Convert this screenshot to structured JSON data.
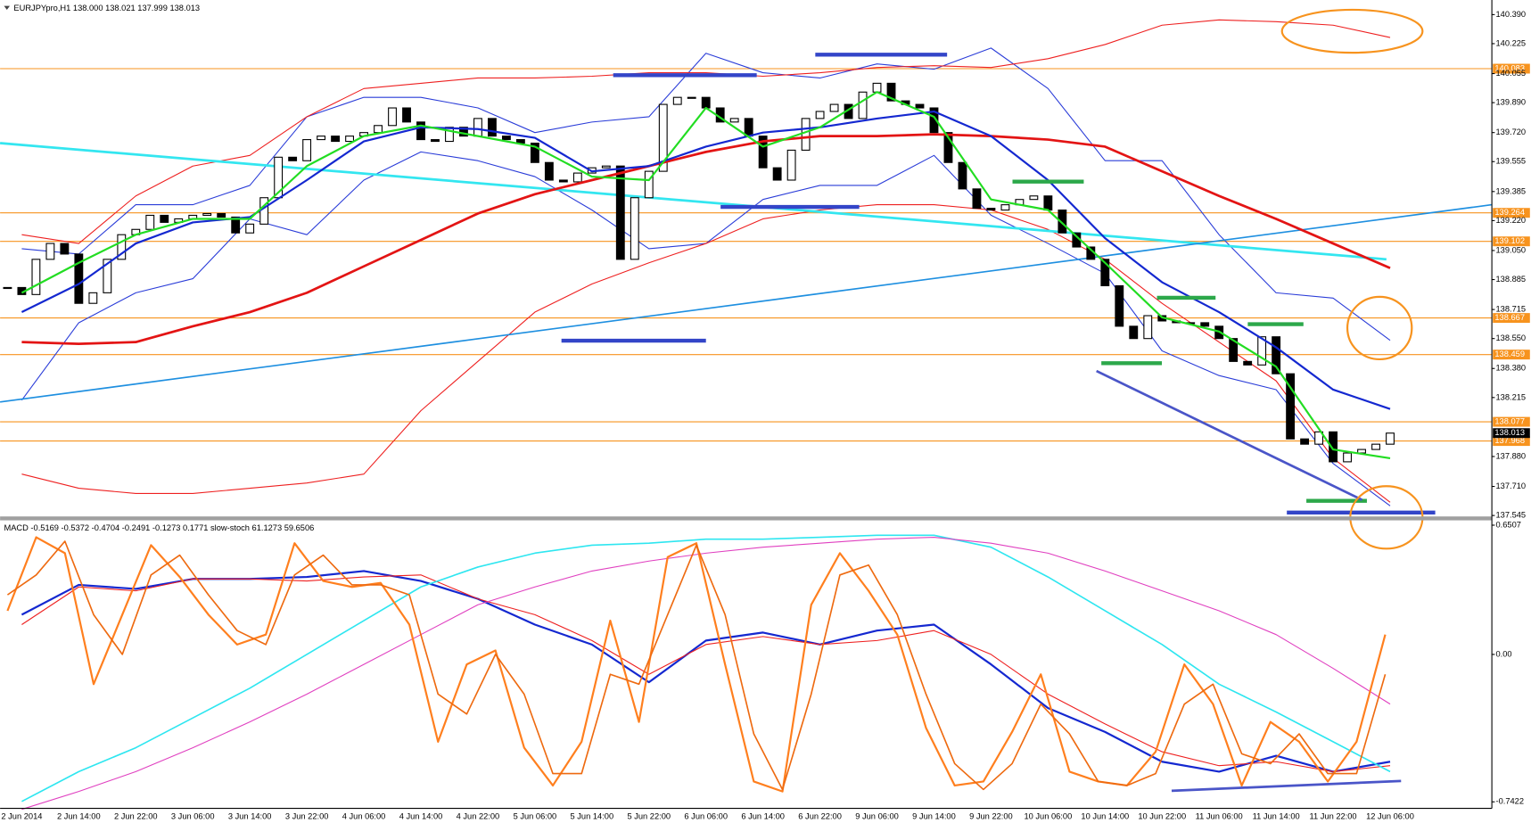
{
  "chart_data": [
    {
      "type": "candlestick",
      "title": "EURJPYpro,H1  138.000 138.021 137.999 138.013",
      "close": [
        138.84,
        138.8,
        139.0,
        139.09,
        139.03,
        138.75,
        138.81,
        139.0,
        139.14,
        139.17,
        139.25,
        139.21,
        139.23,
        139.25,
        139.26,
        139.24,
        139.15,
        139.2,
        139.35,
        139.58,
        139.56,
        139.68,
        139.7,
        139.67,
        139.7,
        139.72,
        139.76,
        139.86,
        139.78,
        139.68,
        139.67,
        139.75,
        139.7,
        139.8,
        139.7,
        139.68,
        139.66,
        139.55,
        139.45,
        139.44,
        139.49,
        139.52,
        139.53,
        139.0,
        139.35,
        139.5,
        139.88,
        139.92,
        139.92,
        139.86,
        139.78,
        139.8,
        139.7,
        139.52,
        139.45,
        139.62,
        139.8,
        139.84,
        139.88,
        139.8,
        139.95,
        140.0,
        139.9,
        139.88,
        139.86,
        139.72,
        139.55,
        139.4,
        139.29,
        139.28,
        139.31,
        139.34,
        139.36,
        139.28,
        139.15,
        139.07,
        139.0,
        138.85,
        138.62,
        138.55,
        138.68,
        138.65,
        138.64,
        138.64,
        138.62,
        138.55,
        138.42,
        138.4,
        138.56,
        138.35,
        137.98,
        137.95,
        138.02,
        137.85,
        137.9,
        137.92,
        137.95,
        138.013
      ],
      "up_color": "#ffffff",
      "down_color": "#000000",
      "ylim": [
        137.534,
        140.473
      ],
      "yticks": [
        {
          "value": 140.39,
          "label": "140.390"
        },
        140.225,
        140.055,
        {
          "value": 139.89,
          "label": "139.890"
        },
        {
          "value": 139.72,
          "label": "139.720"
        },
        139.555,
        139.385,
        {
          "value": 139.22,
          "label": "139.220"
        },
        {
          "value": 139.05,
          "label": "139.050"
        },
        138.885,
        138.715,
        {
          "value": 138.55,
          "label": "138.550"
        },
        {
          "value": 138.38,
          "label": "138.380"
        },
        138.215,
        {
          "value": 137.88,
          "label": "137.880"
        },
        {
          "value": 137.71,
          "label": "137.710"
        },
        137.545
      ],
      "levels": [
        140.083,
        139.264,
        139.102,
        138.667,
        138.459,
        138.077,
        137.968
      ],
      "level_color": "#f7931e",
      "series": [
        {
          "color": "#e31414",
          "values": [
            138.53,
            138.52,
            138.53,
            138.62,
            138.7,
            138.81,
            138.96,
            139.11,
            139.26,
            139.37,
            139.45,
            139.53,
            139.61,
            139.67,
            139.7,
            139.7,
            139.71,
            139.7,
            139.68,
            139.64,
            139.5,
            139.36,
            139.23,
            139.09,
            138.95
          ]
        },
        {
          "color": "#1428d0",
          "values": [
            138.7,
            138.86,
            139.09,
            139.21,
            139.24,
            139.45,
            139.67,
            139.75,
            139.74,
            139.69,
            139.5,
            139.53,
            139.64,
            139.72,
            139.75,
            139.8,
            139.84,
            139.7,
            139.45,
            139.12,
            138.87,
            138.7,
            138.5,
            138.26,
            138.15
          ]
        },
        {
          "color": "#22dd22",
          "values": [
            138.81,
            138.98,
            139.14,
            139.23,
            139.23,
            139.53,
            139.7,
            139.76,
            139.7,
            139.64,
            139.47,
            139.45,
            139.86,
            139.64,
            139.75,
            139.95,
            139.81,
            139.34,
            139.28,
            138.98,
            138.67,
            138.59,
            138.39,
            137.92,
            137.87
          ]
        },
        {
          "color": "#2a3cd8",
          "values": [
            139.06,
            139.03,
            139.31,
            139.31,
            139.42,
            139.81,
            139.92,
            139.92,
            139.86,
            139.72,
            139.78,
            139.81,
            140.17,
            140.06,
            140.03,
            140.11,
            140.08,
            140.2,
            139.97,
            139.56,
            139.56,
            139.14,
            138.81,
            138.78,
            138.54
          ]
        },
        {
          "color": "#2a3cd8",
          "values": [
            138.2,
            138.64,
            138.81,
            138.89,
            139.23,
            139.14,
            139.45,
            139.61,
            139.56,
            139.47,
            139.28,
            139.06,
            139.09,
            139.34,
            139.42,
            139.42,
            139.59,
            139.25,
            139.09,
            138.92,
            138.48,
            138.34,
            138.26,
            137.84,
            137.6
          ]
        },
        {
          "color": "#ee2020",
          "values": [
            139.14,
            139.09,
            139.36,
            139.53,
            139.59,
            139.81,
            139.97,
            140.0,
            140.03,
            140.03,
            140.04,
            140.06,
            140.06,
            140.04,
            140.06,
            140.09,
            140.1,
            140.09,
            140.14,
            140.22,
            140.33,
            140.36,
            140.35,
            140.33,
            140.26
          ]
        },
        {
          "color": "#ee2020",
          "values": [
            137.78,
            137.7,
            137.67,
            137.67,
            137.7,
            137.73,
            137.78,
            138.14,
            138.42,
            138.7,
            138.86,
            138.98,
            139.09,
            139.23,
            139.28,
            139.31,
            139.31,
            139.28,
            139.17,
            139.0,
            138.75,
            138.53,
            138.31,
            137.87,
            137.62
          ]
        }
      ],
      "trend_lines": [
        {
          "color": "#33e6f0",
          "values": [
            139.66,
            139.0
          ]
        },
        {
          "color": "#1e8fe0",
          "values": [
            138.19,
            139.31
          ]
        }
      ],
      "time_axis": [
        "2 Jun 2014",
        "2 Jun 14:00",
        "2 Jun 22:00",
        "3 Jun 06:00",
        "3 Jun 14:00",
        "3 Jun 22:00",
        "4 Jun 06:00",
        "4 Jun 14:00",
        "4 Jun 22:00",
        "5 Jun 06:00",
        "5 Jun 14:00",
        "5 Jun 22:00",
        "6 Jun 06:00",
        "6 Jun 14:00",
        "6 Jun 22:00",
        "9 Jun 06:00",
        "9 Jun 14:00",
        "9 Jun 22:00",
        "10 Jun 06:00",
        "10 Jun 14:00",
        "10 Jun 22:00",
        "11 Jun 06:00",
        "11 Jun 14:00",
        "11 Jun 22:00",
        "12 Jun 06:00"
      ]
    },
    {
      "type": "line",
      "title": "MACD -0.5169 -0.5372 -0.4704 -0.2491 -0.1273 0.1771 slow-stoch 61.1273 59.6506",
      "ylim": [
        -0.775,
        0.675
      ],
      "yticks": [
        0.6507,
        {
          "value": 0,
          "label": "0.00"
        },
        -0.7422
      ],
      "series": [
        {
          "color": "#1428d0",
          "values": [
            0.2,
            0.35,
            0.33,
            0.38,
            0.38,
            0.39,
            0.42,
            0.37,
            0.28,
            0.15,
            0.05,
            -0.14,
            0.07,
            0.11,
            0.05,
            0.12,
            0.15,
            -0.05,
            -0.27,
            -0.39,
            -0.54,
            -0.59,
            -0.51,
            -0.59,
            -0.54
          ]
        },
        {
          "color": "#ee2020",
          "values": [
            0.15,
            0.34,
            0.32,
            0.38,
            0.38,
            0.37,
            0.39,
            0.4,
            0.28,
            0.2,
            0.07,
            -0.1,
            0.05,
            0.09,
            0.05,
            0.07,
            0.12,
            0.0,
            -0.2,
            -0.35,
            -0.49,
            -0.56,
            -0.54,
            -0.59,
            -0.56
          ]
        },
        {
          "color": "#2ee6f0",
          "values": [
            -0.74,
            -0.59,
            -0.47,
            -0.32,
            -0.17,
            0.0,
            0.17,
            0.34,
            0.44,
            0.51,
            0.55,
            0.56,
            0.58,
            0.58,
            0.59,
            0.6,
            0.6,
            0.54,
            0.39,
            0.22,
            0.05,
            -0.15,
            -0.29,
            -0.44,
            -0.59
          ]
        },
        {
          "color": "#e040c0",
          "values": [
            -0.78,
            -0.69,
            -0.59,
            -0.47,
            -0.34,
            -0.2,
            -0.05,
            0.1,
            0.25,
            0.34,
            0.42,
            0.47,
            0.51,
            0.54,
            0.56,
            0.58,
            0.59,
            0.56,
            0.51,
            0.42,
            0.32,
            0.22,
            0.1,
            -0.07,
            -0.25
          ]
        }
      ],
      "oscillator": [
        {
          "color": "#ff7f1e",
          "values": [
            0.22,
            0.59,
            0.51,
            -0.15,
            0.2,
            0.55,
            0.39,
            0.2,
            0.05,
            0.1,
            0.56,
            0.37,
            0.34,
            0.36,
            0.15,
            -0.44,
            -0.05,
            0.02,
            -0.47,
            -0.66,
            -0.44,
            0.17,
            -0.34,
            0.49,
            0.56,
            -0.05,
            -0.64,
            -0.69,
            0.25,
            0.51,
            0.32,
            0.1,
            -0.37,
            -0.66,
            -0.64,
            -0.39,
            -0.1,
            -0.59,
            -0.64,
            -0.66,
            -0.49,
            -0.05,
            -0.25,
            -0.66,
            -0.34,
            -0.44,
            -0.64,
            -0.44,
            0.1
          ]
        },
        {
          "color": "#ee6a10",
          "values": [
            0.3,
            0.4,
            0.57,
            0.2,
            0.0,
            0.4,
            0.5,
            0.3,
            0.12,
            0.05,
            0.4,
            0.5,
            0.35,
            0.35,
            0.3,
            -0.2,
            -0.3,
            0.0,
            -0.2,
            -0.6,
            -0.6,
            -0.1,
            -0.15,
            0.2,
            0.55,
            0.2,
            -0.4,
            -0.68,
            -0.2,
            0.4,
            0.45,
            0.2,
            -0.2,
            -0.55,
            -0.68,
            -0.55,
            -0.25,
            -0.4,
            -0.64,
            -0.66,
            -0.6,
            -0.25,
            -0.15,
            -0.5,
            -0.55,
            -0.4,
            -0.6,
            -0.6,
            -0.1
          ]
        }
      ]
    }
  ]
}
